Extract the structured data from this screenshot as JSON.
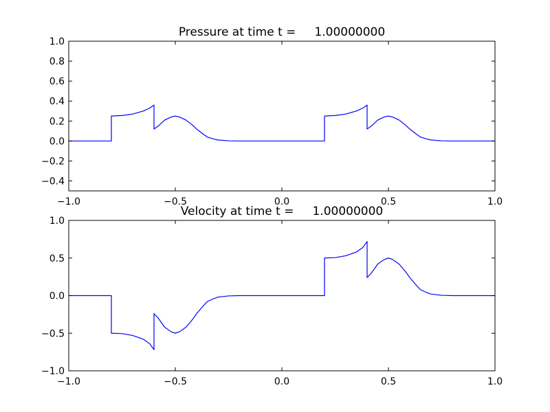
{
  "chart_data": [
    {
      "type": "line",
      "title": "Pressure at time t =     1.00000000",
      "xlabel": "",
      "ylabel": "",
      "xlim": [
        -1.0,
        1.0
      ],
      "ylim": [
        -0.5,
        1.0
      ],
      "xticks": [
        -1.0,
        -0.5,
        0.0,
        0.5,
        1.0
      ],
      "xtick_labels": [
        "−1.0",
        "−0.5",
        "0.0",
        "0.5",
        "1.0"
      ],
      "yticks": [
        -0.4,
        -0.2,
        0.0,
        0.2,
        0.4,
        0.6,
        0.8,
        1.0
      ],
      "ytick_labels": [
        "−0.4",
        "−0.2",
        "0.0",
        "0.2",
        "0.4",
        "0.6",
        "0.8",
        "1.0"
      ],
      "grid": false,
      "color": "#0000ff",
      "series": [
        {
          "x": [
            -1.0,
            -0.8,
            -0.8,
            -0.75,
            -0.7,
            -0.65,
            -0.62,
            -0.6,
            -0.6,
            -0.58,
            -0.55,
            -0.52,
            -0.5,
            -0.48,
            -0.45,
            -0.42,
            -0.4,
            -0.37,
            -0.35,
            -0.32,
            -0.3,
            -0.25,
            -0.2,
            0.0,
            0.2,
            0.2,
            0.25,
            0.3,
            0.35,
            0.38,
            0.4,
            0.4,
            0.42,
            0.45,
            0.48,
            0.5,
            0.52,
            0.55,
            0.58,
            0.6,
            0.63,
            0.65,
            0.68,
            0.7,
            0.75,
            0.8,
            1.0
          ],
          "y": [
            0.0,
            0.0,
            0.25,
            0.255,
            0.27,
            0.3,
            0.33,
            0.36,
            0.12,
            0.15,
            0.21,
            0.24,
            0.25,
            0.24,
            0.21,
            0.16,
            0.12,
            0.07,
            0.04,
            0.02,
            0.01,
            0.002,
            0.0,
            0.0,
            0.0,
            0.25,
            0.255,
            0.27,
            0.3,
            0.33,
            0.36,
            0.12,
            0.15,
            0.21,
            0.24,
            0.25,
            0.24,
            0.21,
            0.16,
            0.12,
            0.07,
            0.04,
            0.02,
            0.01,
            0.002,
            0.0,
            0.0
          ]
        }
      ]
    },
    {
      "type": "line",
      "title": "Velocity at time t =     1.00000000",
      "xlabel": "",
      "ylabel": "",
      "xlim": [
        -1.0,
        1.0
      ],
      "ylim": [
        -1.0,
        1.0
      ],
      "xticks": [
        -1.0,
        -0.5,
        0.0,
        0.5,
        1.0
      ],
      "xtick_labels": [
        "−1.0",
        "−0.5",
        "0.0",
        "0.5",
        "1.0"
      ],
      "yticks": [
        -1.0,
        -0.5,
        0.0,
        0.5,
        1.0
      ],
      "ytick_labels": [
        "−1.0",
        "−0.5",
        "0.0",
        "0.5",
        "1.0"
      ],
      "grid": false,
      "color": "#0000ff",
      "series": [
        {
          "x": [
            -1.0,
            -0.8,
            -0.8,
            -0.75,
            -0.7,
            -0.65,
            -0.62,
            -0.6,
            -0.6,
            -0.58,
            -0.55,
            -0.52,
            -0.5,
            -0.48,
            -0.45,
            -0.42,
            -0.4,
            -0.37,
            -0.35,
            -0.32,
            -0.3,
            -0.25,
            -0.2,
            0.0,
            0.2,
            0.2,
            0.25,
            0.3,
            0.35,
            0.38,
            0.4,
            0.4,
            0.42,
            0.45,
            0.48,
            0.5,
            0.52,
            0.55,
            0.58,
            0.6,
            0.63,
            0.65,
            0.68,
            0.7,
            0.75,
            0.8,
            1.0
          ],
          "y": [
            0.0,
            0.0,
            -0.5,
            -0.505,
            -0.53,
            -0.58,
            -0.64,
            -0.72,
            -0.24,
            -0.3,
            -0.42,
            -0.48,
            -0.5,
            -0.48,
            -0.42,
            -0.32,
            -0.24,
            -0.14,
            -0.08,
            -0.04,
            -0.02,
            -0.004,
            0.0,
            0.0,
            0.0,
            0.5,
            0.505,
            0.53,
            0.58,
            0.64,
            0.72,
            0.24,
            0.3,
            0.42,
            0.48,
            0.5,
            0.48,
            0.42,
            0.32,
            0.24,
            0.14,
            0.08,
            0.04,
            0.02,
            0.004,
            0.0,
            0.0
          ]
        }
      ]
    }
  ]
}
